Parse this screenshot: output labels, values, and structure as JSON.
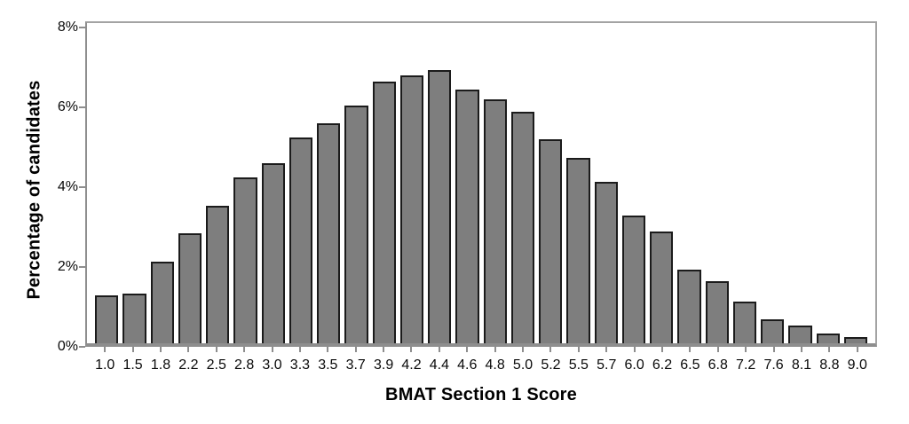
{
  "chart_data": {
    "type": "bar",
    "title": "",
    "xlabel": "BMAT Section 1 Score",
    "ylabel": "Percentage of candidates",
    "categories": [
      "1.0",
      "1.5",
      "1.8",
      "2.2",
      "2.5",
      "2.8",
      "3.0",
      "3.3",
      "3.5",
      "3.7",
      "3.9",
      "4.2",
      "4.4",
      "4.6",
      "4.8",
      "5.0",
      "5.2",
      "5.5",
      "5.7",
      "6.0",
      "6.2",
      "6.5",
      "6.8",
      "7.2",
      "7.6",
      "8.1",
      "8.8",
      "9.0"
    ],
    "values": [
      1.2,
      1.25,
      2.05,
      2.75,
      3.45,
      4.15,
      4.5,
      5.15,
      5.5,
      5.95,
      6.55,
      6.7,
      6.85,
      6.35,
      6.1,
      5.8,
      5.1,
      4.65,
      4.05,
      3.2,
      2.8,
      1.85,
      1.55,
      1.05,
      0.6,
      0.45,
      0.25,
      0.15
    ],
    "y_tick_labels": [
      "0%",
      "2%",
      "4%",
      "6%",
      "8%"
    ],
    "y_tick_values": [
      0,
      2,
      4,
      6,
      8
    ],
    "ylim": [
      0,
      8.15
    ],
    "grid": false,
    "legend_position": "none",
    "bar_fill_color": "#7e7e7e",
    "bar_stroke_color": "#1b1b1b",
    "axis_color": "#8e8e8e"
  }
}
